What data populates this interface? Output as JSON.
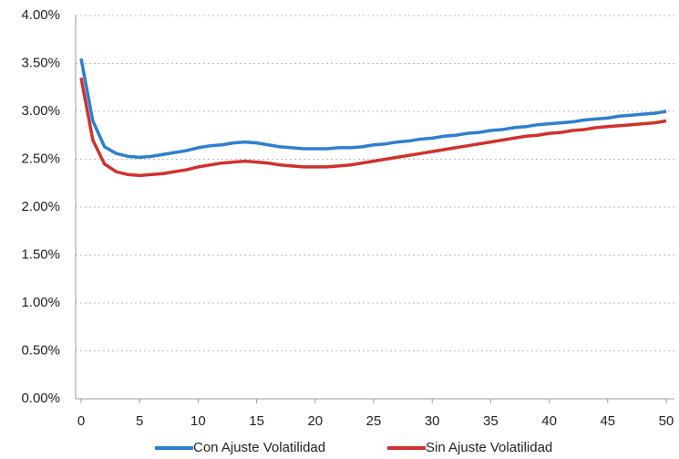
{
  "chart_data": {
    "type": "line",
    "x": [
      0,
      1,
      2,
      3,
      4,
      5,
      6,
      7,
      8,
      9,
      10,
      11,
      12,
      13,
      14,
      15,
      16,
      17,
      18,
      19,
      20,
      21,
      22,
      23,
      24,
      25,
      26,
      27,
      28,
      29,
      30,
      31,
      32,
      33,
      34,
      35,
      36,
      37,
      38,
      39,
      40,
      41,
      42,
      43,
      44,
      45,
      46,
      47,
      48,
      49,
      50
    ],
    "series": [
      {
        "name": "Con Ajuste Volatilidad",
        "color": "#2f7fd0",
        "values": [
          3.55,
          2.9,
          2.63,
          2.56,
          2.53,
          2.52,
          2.53,
          2.55,
          2.57,
          2.59,
          2.62,
          2.64,
          2.65,
          2.67,
          2.68,
          2.67,
          2.65,
          2.63,
          2.62,
          2.61,
          2.61,
          2.61,
          2.62,
          2.62,
          2.63,
          2.65,
          2.66,
          2.68,
          2.69,
          2.71,
          2.72,
          2.74,
          2.75,
          2.77,
          2.78,
          2.8,
          2.81,
          2.83,
          2.84,
          2.86,
          2.87,
          2.88,
          2.89,
          2.91,
          2.92,
          2.93,
          2.95,
          2.96,
          2.97,
          2.98,
          3.0
        ]
      },
      {
        "name": "Sin Ajuste Volatilidad",
        "color": "#d0322d",
        "values": [
          3.35,
          2.7,
          2.45,
          2.37,
          2.34,
          2.33,
          2.34,
          2.35,
          2.37,
          2.39,
          2.42,
          2.44,
          2.46,
          2.47,
          2.48,
          2.47,
          2.46,
          2.44,
          2.43,
          2.42,
          2.42,
          2.42,
          2.43,
          2.44,
          2.46,
          2.48,
          2.5,
          2.52,
          2.54,
          2.56,
          2.58,
          2.6,
          2.62,
          2.64,
          2.66,
          2.68,
          2.7,
          2.72,
          2.74,
          2.75,
          2.77,
          2.78,
          2.8,
          2.81,
          2.83,
          2.84,
          2.85,
          2.86,
          2.87,
          2.88,
          2.9
        ]
      }
    ],
    "xlim": [
      0,
      50
    ],
    "xticks": [
      0,
      5,
      10,
      15,
      20,
      25,
      30,
      35,
      40,
      45,
      50
    ],
    "ylim": [
      0,
      4
    ],
    "yticks": [
      {
        "value": 0,
        "label": "0.00%"
      },
      {
        "value": 0.5,
        "label": "0.50%"
      },
      {
        "value": 1,
        "label": "1.00%"
      },
      {
        "value": 1.5,
        "label": "1.50%"
      },
      {
        "value": 2,
        "label": "2.00%"
      },
      {
        "value": 2.5,
        "label": "2.50%"
      },
      {
        "value": 3,
        "label": "3.00%"
      },
      {
        "value": 3.5,
        "label": "3.50%"
      },
      {
        "value": 4,
        "label": "4.00%"
      }
    ],
    "grid": true,
    "legend": "bottom"
  }
}
